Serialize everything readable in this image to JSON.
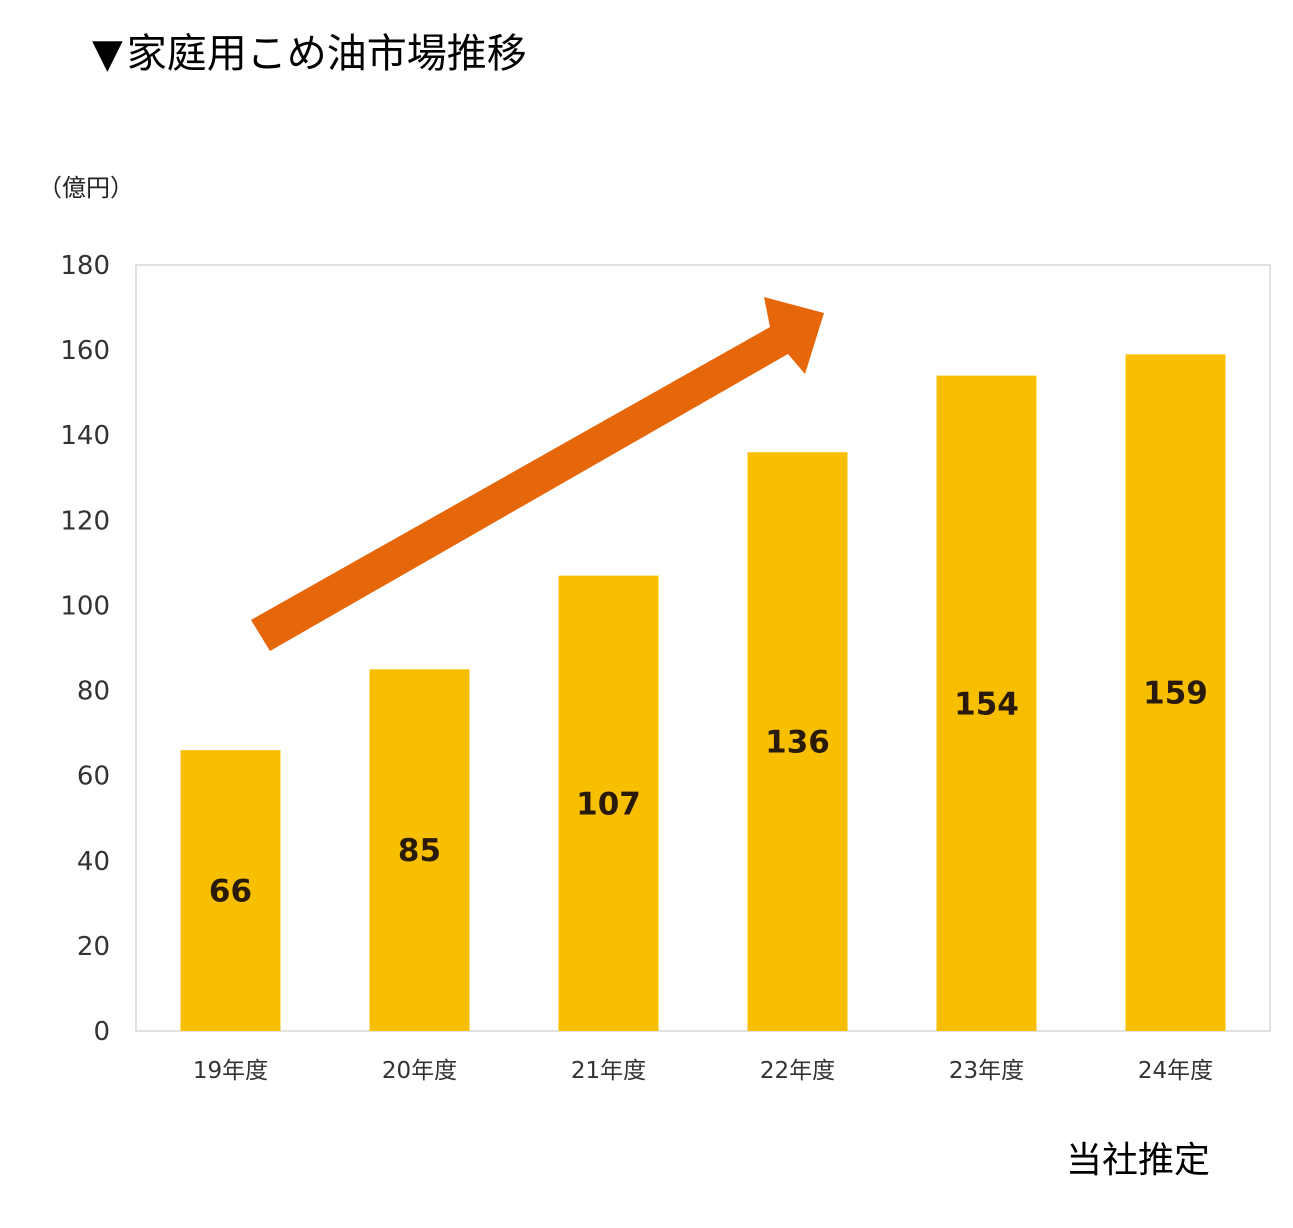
{
  "title": {
    "marker": "▼",
    "text": "家庭用こめ油市場推移"
  },
  "source_note": "当社推定",
  "colors": {
    "bar": "#F8BF00",
    "arrow": "#E6670A",
    "value_label": "#2A1A0A",
    "tick_label": "#333333",
    "plot_border": "#D9D9D9"
  },
  "chart_data": {
    "type": "bar",
    "title": "家庭用こめ油市場推移",
    "xlabel": "",
    "ylabel": "（億円）",
    "categories": [
      "19年度",
      "20年度",
      "21年度",
      "22年度",
      "23年度",
      "24年度"
    ],
    "values": [
      66,
      85,
      107,
      136,
      154,
      159
    ],
    "ylim": [
      0,
      180
    ],
    "yticks": [
      0,
      20,
      40,
      60,
      80,
      100,
      120,
      140,
      160,
      180
    ],
    "data_labels": [
      "66",
      "85",
      "107",
      "136",
      "154",
      "159"
    ],
    "grid": false,
    "legend": "none",
    "annotations": [
      {
        "type": "arrow",
        "description": "upward trend arrow",
        "icon": "trend-arrow-icon"
      }
    ]
  }
}
